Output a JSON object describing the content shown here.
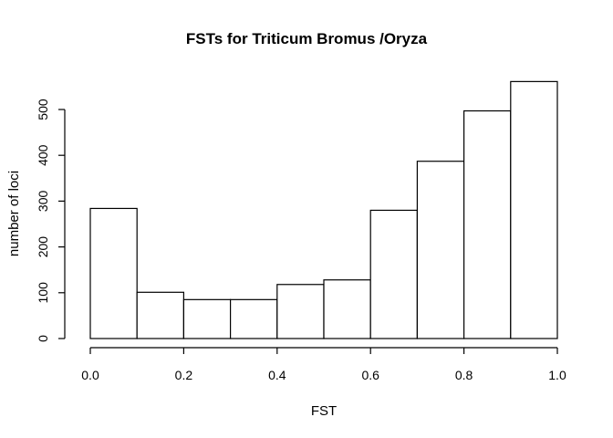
{
  "chart_data": {
    "type": "bar",
    "title": "FSTs for Triticum Bromus /Oryza",
    "xlabel": "FST",
    "ylabel": "number of loci",
    "bins": [
      [
        0.0,
        0.1
      ],
      [
        0.1,
        0.2
      ],
      [
        0.2,
        0.3
      ],
      [
        0.3,
        0.4
      ],
      [
        0.4,
        0.5
      ],
      [
        0.5,
        0.6
      ],
      [
        0.6,
        0.7
      ],
      [
        0.7,
        0.8
      ],
      [
        0.8,
        0.9
      ],
      [
        0.9,
        1.0
      ]
    ],
    "values": [
      284,
      101,
      85,
      85,
      118,
      128,
      280,
      387,
      497,
      561
    ],
    "xlim": [
      0.0,
      1.0
    ],
    "ylim": [
      0,
      500
    ],
    "x_ticks": [
      "0.0",
      "0.2",
      "0.4",
      "0.6",
      "0.8",
      "1.0"
    ],
    "y_ticks": [
      "0",
      "100",
      "200",
      "300",
      "400",
      "500"
    ],
    "grid": false,
    "legend": "none"
  }
}
